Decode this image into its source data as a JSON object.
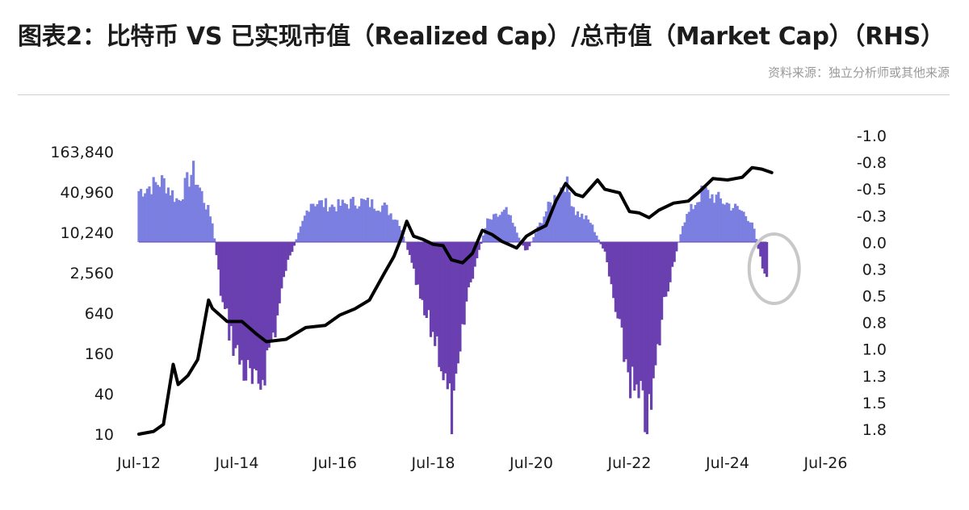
{
  "header": {
    "title": "图表2：比特币 VS 已实现市值（Realized Cap）/总市值（Market Cap）（RHS）",
    "source": "资料来源：独立分析师或其他来源"
  },
  "chart_data": {
    "type": "area+line",
    "title": "图表2：比特币 VS 已实现市值（Realized Cap）/总市值（Market Cap）（RHS）",
    "x_ticks": [
      "Jul-12",
      "Jul-14",
      "Jul-16",
      "Jul-18",
      "Jul-20",
      "Jul-22",
      "Jul-24",
      "Jul-26"
    ],
    "x_range": [
      2012.5,
      2026.5
    ],
    "left_axis": {
      "scale": "log2",
      "ticks": [
        "163,840",
        "40,960",
        "10,240",
        "2,560",
        "640",
        "160",
        "40",
        "10"
      ],
      "range": [
        10,
        163840
      ]
    },
    "right_axis": {
      "inverted": true,
      "ticks": [
        "-1.0",
        "-0.8",
        "-0.5",
        "-0.3",
        "0.0",
        "0.3",
        "0.5",
        "0.8",
        "1.0",
        "1.3",
        "1.5",
        "1.8"
      ],
      "range": [
        -1.0,
        1.8
      ]
    },
    "colors": {
      "positive_area": "#7b7fe0",
      "negative_area": "#6a3fb0",
      "price_line": "#000000",
      "highlight": "#c8c8c8"
    },
    "series": [
      {
        "name": "BTC Price",
        "axis": "left",
        "x": [
          2012.5,
          2012.8,
          2013.0,
          2013.2,
          2013.3,
          2013.5,
          2013.7,
          2013.92,
          2014.0,
          2014.3,
          2014.6,
          2014.9,
          2015.1,
          2015.5,
          2015.9,
          2016.3,
          2016.6,
          2016.9,
          2017.2,
          2017.5,
          2017.7,
          2017.85,
          2017.96,
          2018.1,
          2018.3,
          2018.5,
          2018.7,
          2018.87,
          2019.1,
          2019.3,
          2019.5,
          2019.7,
          2019.9,
          2020.2,
          2020.4,
          2020.6,
          2020.8,
          2021.0,
          2021.2,
          2021.4,
          2021.55,
          2021.85,
          2022.0,
          2022.3,
          2022.5,
          2022.7,
          2022.9,
          2023.1,
          2023.4,
          2023.7,
          2023.9,
          2024.2,
          2024.5,
          2024.8,
          2025.0,
          2025.2,
          2025.4
        ],
        "values": [
          7,
          11,
          14,
          110,
          55,
          75,
          130,
          1000,
          750,
          480,
          480,
          310,
          240,
          260,
          390,
          420,
          600,
          740,
          1000,
          2500,
          4500,
          8500,
          15000,
          9000,
          8000,
          6800,
          6500,
          4000,
          3600,
          5000,
          11000,
          9500,
          7500,
          6000,
          9000,
          11000,
          13000,
          30000,
          55000,
          38000,
          35000,
          62000,
          45000,
          40000,
          21000,
          20000,
          17000,
          22000,
          28000,
          30000,
          40000,
          65000,
          62000,
          68000,
          95000,
          90000,
          80000
        ]
      },
      {
        "name": "Realized Cap / Market Cap (RHS, inverted)",
        "axis": "right",
        "x": [
          2012.5,
          2013.0,
          2013.3,
          2013.6,
          2013.8,
          2014.0,
          2014.2,
          2014.5,
          2014.9,
          2015.3,
          2015.5,
          2016.0,
          2016.5,
          2017.0,
          2017.5,
          2017.8,
          2018.0,
          2018.3,
          2018.6,
          2018.9,
          2019.2,
          2019.6,
          2020.0,
          2020.4,
          2020.8,
          2021.2,
          2021.4,
          2021.7,
          2022.0,
          2022.3,
          2022.6,
          2022.9,
          2023.2,
          2023.6,
          2024.0,
          2024.4,
          2024.8,
          2025.0,
          2025.3
        ],
        "values": [
          -0.5,
          -0.6,
          -0.4,
          -0.7,
          -0.45,
          -0.2,
          0.6,
          1.1,
          1.5,
          0.8,
          0.25,
          -0.4,
          -0.35,
          -0.4,
          -0.35,
          -0.2,
          0.1,
          0.7,
          1.0,
          1.8,
          0.5,
          -0.2,
          -0.3,
          0.1,
          -0.3,
          -0.6,
          -0.3,
          -0.2,
          0.1,
          0.9,
          1.5,
          1.8,
          0.6,
          -0.2,
          -0.5,
          -0.4,
          -0.3,
          -0.2,
          0.4
        ]
      }
    ],
    "annotation": "circled region near Jul-25 highlighting recent dip below zero"
  }
}
